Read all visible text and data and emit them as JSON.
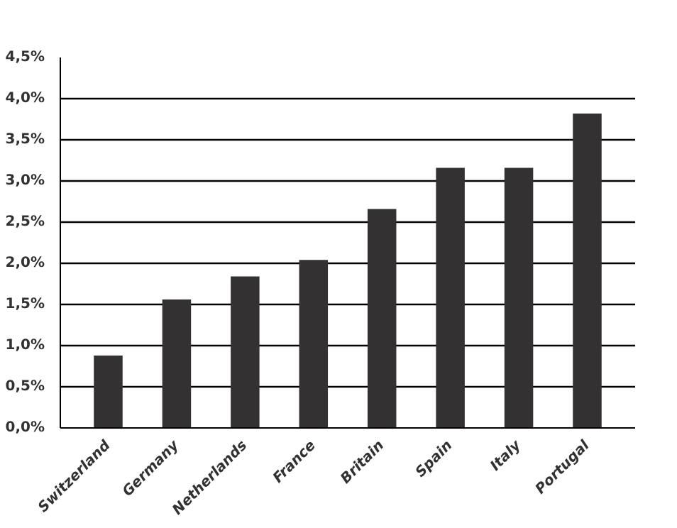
{
  "chart_data": {
    "type": "bar",
    "categories": [
      "Switzerland",
      "Germany",
      "Netherlands",
      "France",
      "Britain",
      "Spain",
      "Italy",
      "Portugal"
    ],
    "values": [
      0.88,
      1.56,
      1.84,
      2.04,
      2.66,
      3.16,
      3.16,
      3.82
    ],
    "color": "#333132",
    "ylim": [
      0,
      4.5
    ],
    "yticks": [
      {
        "value": 0,
        "label": "0,0%"
      },
      {
        "value": 0.5,
        "label": "0,5%"
      },
      {
        "value": 1,
        "label": "1,0%"
      },
      {
        "value": 1.5,
        "label": "1,5%"
      },
      {
        "value": 2,
        "label": "2,0%"
      },
      {
        "value": 2.5,
        "label": "2,5%"
      },
      {
        "value": 3,
        "label": "3,0%"
      },
      {
        "value": 3.5,
        "label": "3,5%"
      },
      {
        "value": 4,
        "label": "4,0%"
      },
      {
        "value": 4.5,
        "label": "4,5%"
      }
    ],
    "grid": "y"
  }
}
